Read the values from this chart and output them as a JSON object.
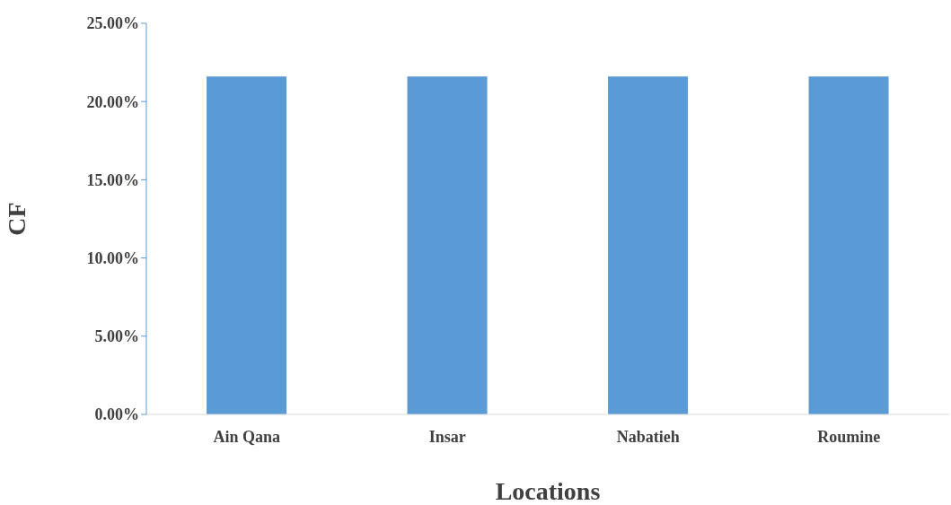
{
  "chart_data": {
    "type": "bar",
    "xlabel": "Locations",
    "ylabel": "CF",
    "categories": [
      "Ain Qana",
      "Insar",
      "Nabatieh",
      "Roumine"
    ],
    "values": [
      21.6,
      21.6,
      21.6,
      21.6
    ],
    "color": "#5b9bd5",
    "ylim": [
      0,
      25
    ],
    "yticks": [
      {
        "value": 0,
        "label": "0.00%"
      },
      {
        "value": 5,
        "label": "5.00%"
      },
      {
        "value": 10,
        "label": "10.00%"
      },
      {
        "value": 15,
        "label": "15.00%"
      },
      {
        "value": 20,
        "label": "20.00%"
      },
      {
        "value": 25,
        "label": "25.00%"
      }
    ],
    "grid": false,
    "legend": false
  }
}
